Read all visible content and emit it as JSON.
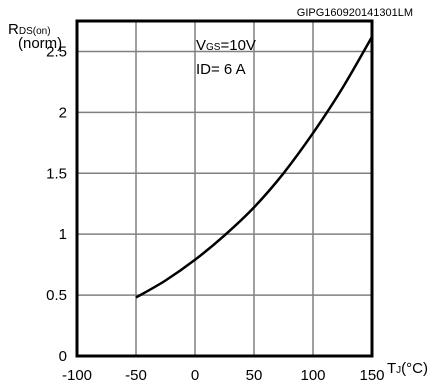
{
  "chart_data": {
    "type": "line",
    "title": "",
    "figure_code": "GIPG160920141301LM",
    "ylabel": {
      "main": "R",
      "sub": "DS(on)",
      "second_line": "(norm)"
    },
    "xlabel": {
      "main": "T",
      "sub": "J",
      "unit": "(°C)"
    },
    "annotations": [
      {
        "main": "V",
        "sub": "GS",
        "rest": "=10V"
      },
      {
        "main": "ID= 6 A",
        "sub": "",
        "rest": ""
      }
    ],
    "xlim": [
      -100,
      150
    ],
    "ylim": [
      0,
      2.75
    ],
    "x_ticks": [
      -100,
      -50,
      0,
      50,
      100,
      150
    ],
    "x_tick_labels": [
      "-100",
      "-50",
      "0",
      "50",
      "100",
      "150"
    ],
    "y_ticks": [
      0,
      0.5,
      1,
      1.5,
      2,
      2.5
    ],
    "y_tick_labels": [
      "0",
      "0.5",
      "1",
      "1.5",
      "2",
      "2.5"
    ],
    "grid": true,
    "series": [
      {
        "x": [
          -50,
          -25,
          0,
          25,
          50,
          75,
          100,
          125,
          150
        ],
        "y": [
          0.48,
          0.62,
          0.79,
          0.99,
          1.22,
          1.5,
          1.83,
          2.2,
          2.62
        ]
      }
    ]
  }
}
